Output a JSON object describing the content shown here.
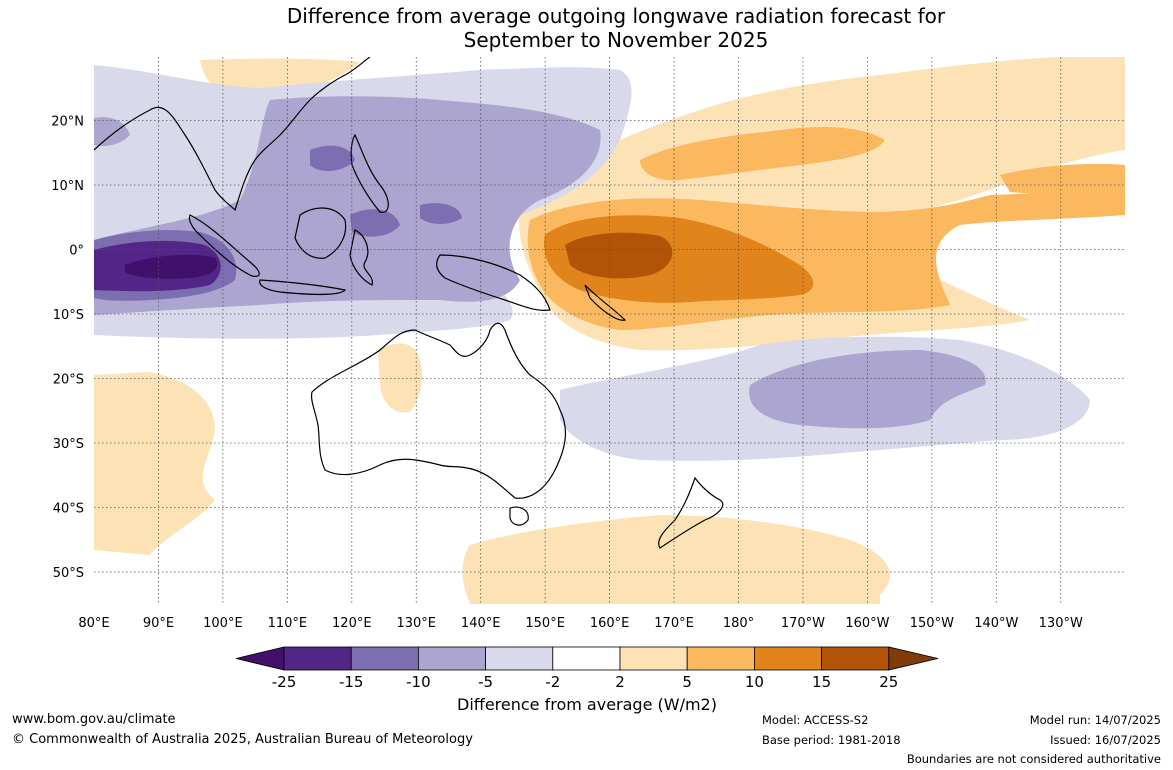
{
  "title": {
    "line1": "Difference from average outgoing longwave radiation forecast for",
    "line2": "September to November 2025"
  },
  "map": {
    "lon_labels": [
      "80°E",
      "90°E",
      "100°E",
      "110°E",
      "120°E",
      "130°E",
      "140°E",
      "150°E",
      "160°E",
      "170°E",
      "180°",
      "170°W",
      "160°W",
      "150°W",
      "140°W",
      "130°W"
    ],
    "lat_labels": [
      "20°N",
      "10°N",
      "0°",
      "10°S",
      "20°S",
      "30°S",
      "40°S",
      "50°S"
    ],
    "gridlines": true,
    "colors": {
      "purple_strong": "#40106a",
      "purple_dark": "#532587",
      "purple_mid": "#7d6eb1",
      "purple_light": "#aba5d0",
      "purple_pale": "#d9d9ec",
      "orange_pale": "#fde2b5",
      "orange_light": "#fbb85f",
      "orange_mid": "#e0841b",
      "orange_dark": "#b15407",
      "orange_strong": "#7f3b08",
      "neutral": "#ffffff"
    }
  },
  "colorbar": {
    "tick_labels": [
      "-25",
      "-15",
      "-10",
      "-5",
      "-2",
      "2",
      "5",
      "10",
      "15",
      "25"
    ],
    "segment_colors": [
      "#532587",
      "#7d6eb1",
      "#aba5d0",
      "#d9d9ec",
      "#ffffff",
      "#fde2b5",
      "#fbb85f",
      "#e0841b",
      "#b15407"
    ],
    "left_arrow_color": "#40106a",
    "right_arrow_color": "#7f3b08",
    "label": "Difference from average (W/m2)"
  },
  "footer": {
    "website": "www.bom.gov.au/climate",
    "copyright": "© Commonwealth of Australia 2025, Australian Bureau of Meteorology",
    "model": "Model: ACCESS-S2",
    "base_period": "Base period: 1981-2018",
    "model_run": "Model run: 14/07/2025",
    "issued": "Issued: 16/07/2025",
    "disclaimer": "Boundaries are not considered authoritative"
  }
}
